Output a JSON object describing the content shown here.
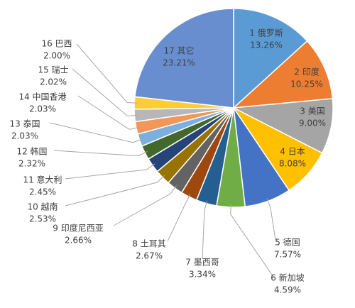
{
  "chart_data": {
    "type": "pie",
    "categories": [
      "1 俄罗斯",
      "2 印度",
      "3 美国",
      "4 日本",
      "5 德国",
      "6 新加坡",
      "7 墨西哥",
      "8 土耳其",
      "9 印度尼西亚",
      "10 越南",
      "11 意大利",
      "12 韩国",
      "13 泰国",
      "14 中国香港",
      "15 瑞士",
      "16 巴西",
      "17 其它"
    ],
    "values": [
      13.26,
      10.25,
      9.0,
      8.08,
      7.57,
      4.59,
      3.34,
      2.67,
      2.66,
      2.53,
      2.45,
      2.32,
      2.03,
      2.03,
      2.02,
      2.0,
      23.21
    ],
    "value_labels": [
      "13.26%",
      "10.25%",
      "9.00%",
      "8.08%",
      "7.57%",
      "4.59%",
      "3.34%",
      "2.67%",
      "2.66%",
      "2.53%",
      "2.45%",
      "2.32%",
      "2.03%",
      "2.03%",
      "2.02%",
      "2.00%",
      "23.21%"
    ],
    "colors": [
      "#5b9bd5",
      "#ed7d31",
      "#a5a5a5",
      "#ffc000",
      "#4472c4",
      "#70ad47",
      "#255e91",
      "#9e480e",
      "#636363",
      "#997300",
      "#264478",
      "#43682b",
      "#7cafdd",
      "#f1975a",
      "#b7b7b7",
      "#ffcd33",
      "#698ed0"
    ]
  }
}
